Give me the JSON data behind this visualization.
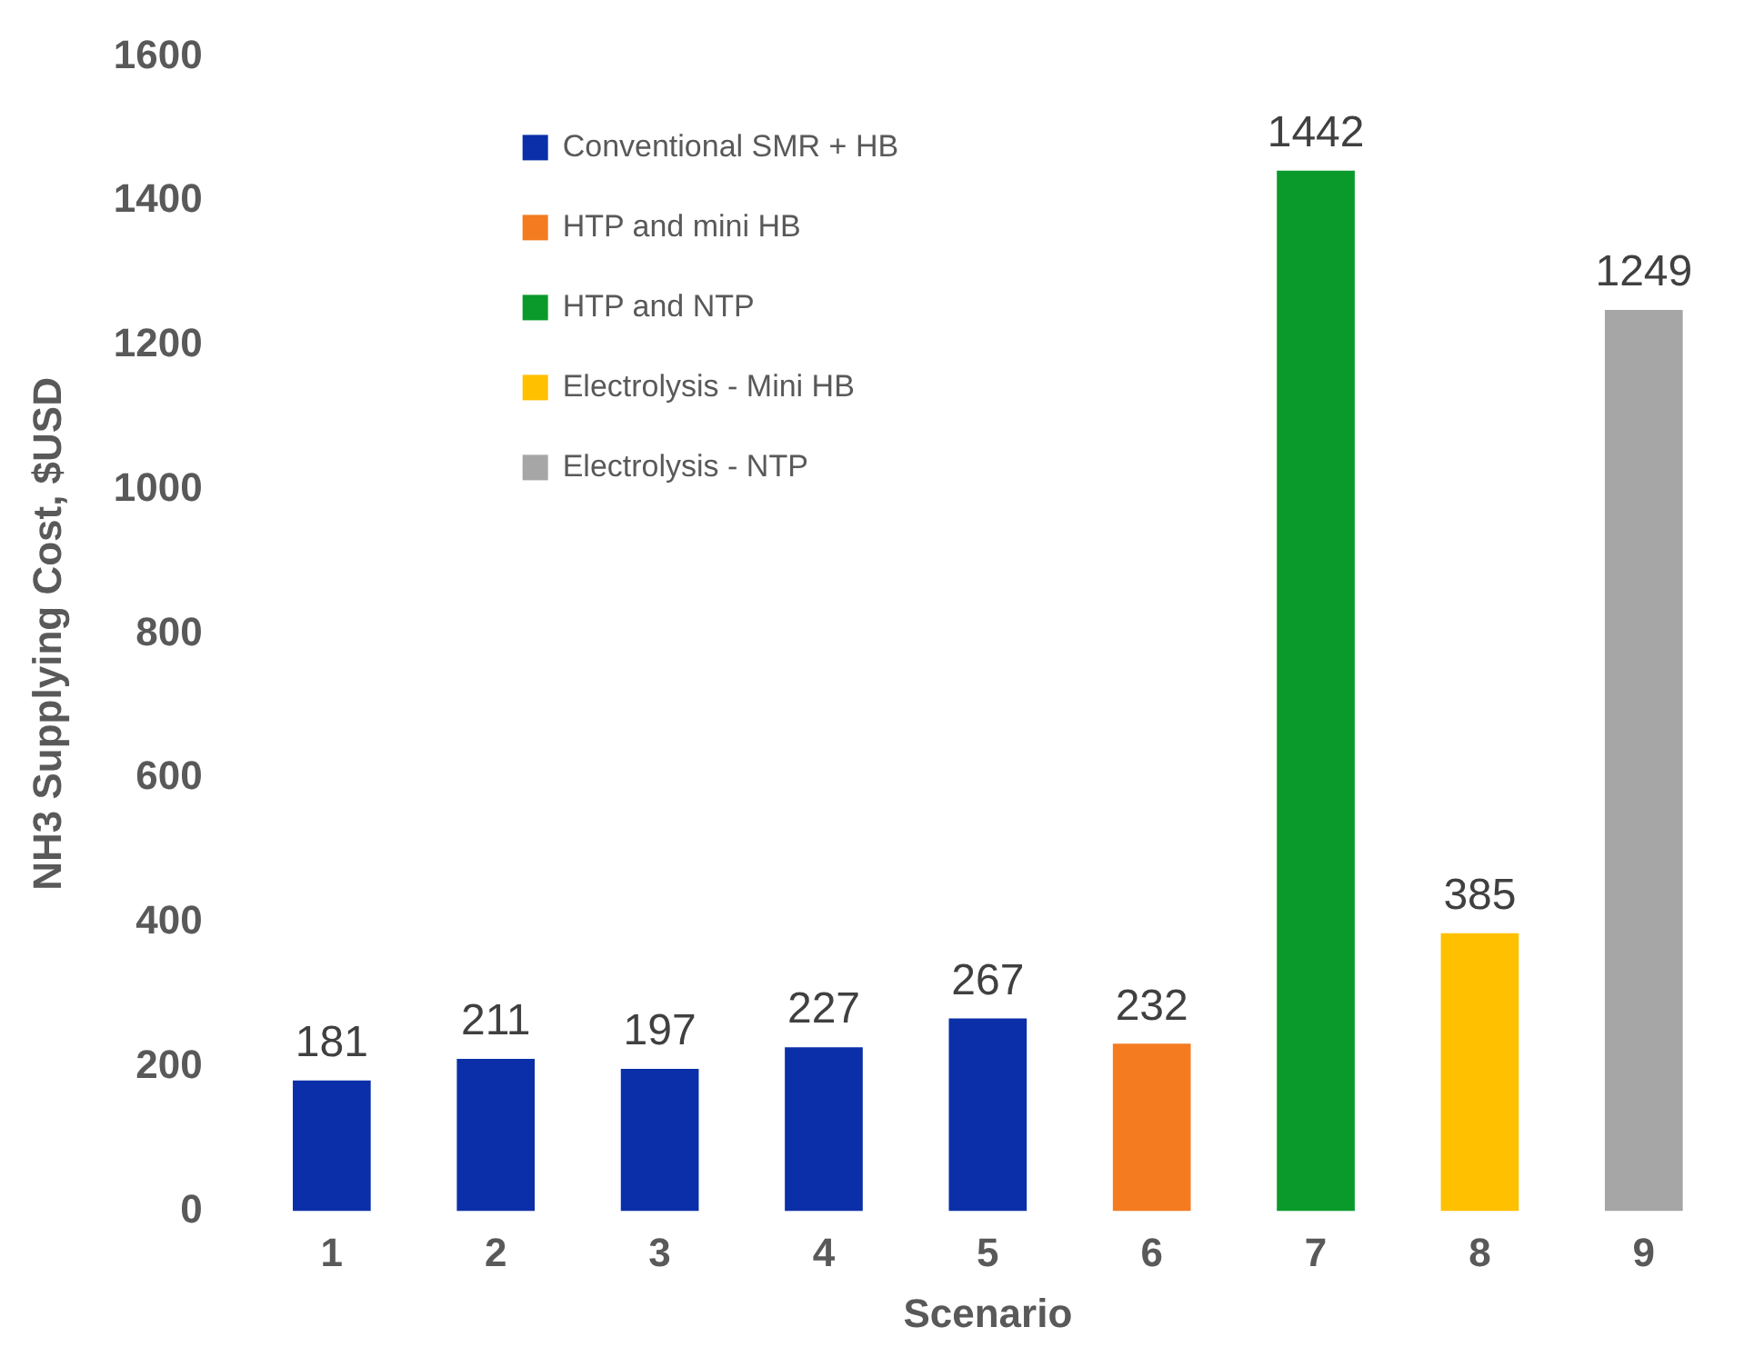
{
  "chart_data": {
    "type": "bar",
    "xlabel": "Scenario",
    "ylabel": "NH3 Supplying Cost, $USD",
    "categories": [
      "1",
      "2",
      "3",
      "4",
      "5",
      "6",
      "7",
      "8",
      "9"
    ],
    "series": [
      {
        "name": "Conventional SMR + HB",
        "color": "#0a2fa8",
        "values": [
          181,
          211,
          197,
          227,
          267,
          null,
          null,
          null,
          null
        ]
      },
      {
        "name": "HTP and mini HB",
        "color": "#f47b20",
        "values": [
          null,
          null,
          null,
          null,
          null,
          232,
          null,
          null,
          null
        ]
      },
      {
        "name": "HTP and NTP",
        "color": "#0a9a2b",
        "values": [
          null,
          null,
          null,
          null,
          null,
          null,
          1442,
          null,
          null
        ]
      },
      {
        "name": "Electrolysis - Mini HB",
        "color": "#ffc000",
        "values": [
          null,
          null,
          null,
          null,
          null,
          null,
          null,
          385,
          null
        ]
      },
      {
        "name": "Electrolysis - NTP",
        "color": "#a6a6a6",
        "values": [
          null,
          null,
          null,
          null,
          null,
          null,
          null,
          null,
          1249
        ]
      }
    ],
    "ylim": [
      0,
      1600
    ],
    "yticks": [
      0,
      200,
      400,
      600,
      800,
      1000,
      1200,
      1400,
      1600
    ],
    "data_labels": true,
    "grid": false,
    "legend": "top left"
  }
}
